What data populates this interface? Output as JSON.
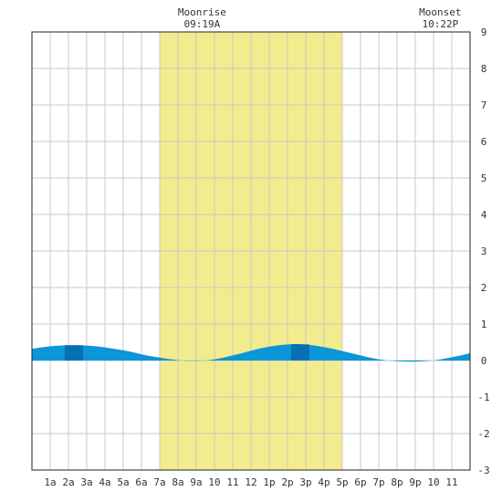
{
  "chart_data": {
    "type": "area",
    "annotations": [
      {
        "title": "Moonrise",
        "time": "09:19A",
        "x": 9.317
      },
      {
        "title": "Moonset",
        "time": "10:22P",
        "x": 22.367
      }
    ],
    "daylight": {
      "start": 7,
      "end": 17,
      "color": "#f2ec8e"
    },
    "x_ticks": [
      {
        "x": 1,
        "label": "1a"
      },
      {
        "x": 2,
        "label": "2a"
      },
      {
        "x": 3,
        "label": "3a"
      },
      {
        "x": 4,
        "label": "4a"
      },
      {
        "x": 5,
        "label": "5a"
      },
      {
        "x": 6,
        "label": "6a"
      },
      {
        "x": 7,
        "label": "7a"
      },
      {
        "x": 8,
        "label": "8a"
      },
      {
        "x": 9,
        "label": "9a"
      },
      {
        "x": 10,
        "label": "10"
      },
      {
        "x": 11,
        "label": "11"
      },
      {
        "x": 12,
        "label": "12"
      },
      {
        "x": 13,
        "label": "1p"
      },
      {
        "x": 14,
        "label": "2p"
      },
      {
        "x": 15,
        "label": "3p"
      },
      {
        "x": 16,
        "label": "4p"
      },
      {
        "x": 17,
        "label": "5p"
      },
      {
        "x": 18,
        "label": "6p"
      },
      {
        "x": 19,
        "label": "7p"
      },
      {
        "x": 20,
        "label": "8p"
      },
      {
        "x": 21,
        "label": "9p"
      },
      {
        "x": 22,
        "label": "10"
      },
      {
        "x": 23,
        "label": "11"
      }
    ],
    "y_ticks": [
      -3,
      -2,
      -1,
      0,
      1,
      2,
      3,
      4,
      5,
      6,
      7,
      8,
      9
    ],
    "xlim": [
      0,
      24
    ],
    "ylim": [
      -3,
      9
    ],
    "grid": true,
    "series": [
      {
        "x": [
          0,
          0.5,
          1,
          1.5,
          2,
          2.5,
          3,
          3.5,
          4,
          4.5,
          5,
          5.5,
          6,
          6.5,
          7,
          7.5,
          8,
          8.5,
          9,
          9.5,
          10,
          10.5,
          11,
          11.5,
          12,
          12.5,
          13,
          13.5,
          14,
          14.5,
          15,
          15.5,
          16,
          16.5,
          17,
          17.5,
          18,
          18.5,
          19,
          19.5,
          20,
          20.5,
          21,
          21.5,
          22,
          22.5,
          23,
          23.5,
          24
        ],
        "values": [
          0.32,
          0.36,
          0.39,
          0.41,
          0.42,
          0.42,
          0.41,
          0.39,
          0.36,
          0.32,
          0.28,
          0.23,
          0.17,
          0.12,
          0.08,
          0.04,
          0.01,
          -0.01,
          -0.01,
          0.0,
          0.03,
          0.08,
          0.14,
          0.2,
          0.27,
          0.33,
          0.38,
          0.42,
          0.44,
          0.45,
          0.44,
          0.41,
          0.37,
          0.32,
          0.26,
          0.2,
          0.14,
          0.08,
          0.03,
          0.0,
          -0.02,
          -0.03,
          -0.03,
          -0.02,
          0.0,
          0.04,
          0.09,
          0.14,
          0.2
        ]
      }
    ],
    "peaks": [
      {
        "x": 2.3,
        "y": 0.42
      },
      {
        "x": 14.7,
        "y": 0.45
      }
    ],
    "colors": {
      "fill": "#0a96d8",
      "peak_fill": "#0571b0",
      "grid": "#c8c8c8",
      "axis": "#222222"
    }
  }
}
